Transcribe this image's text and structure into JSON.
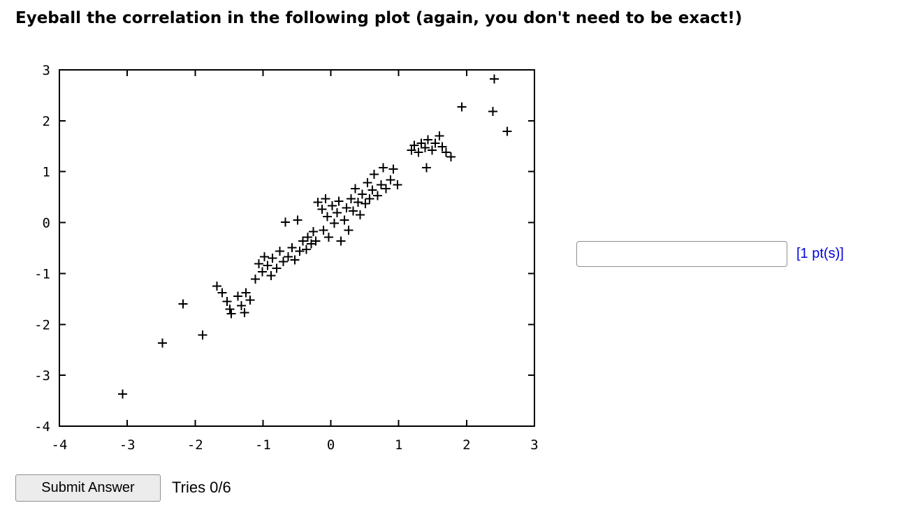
{
  "page": {
    "title": "Eyeball the correlation in the following plot (again, you don't need to be exact!)"
  },
  "answer": {
    "input_value": "",
    "points_label": "[1 pt(s)]"
  },
  "actions": {
    "submit_label": "Submit Answer",
    "tries_label": "Tries 0/6"
  },
  "colors": {
    "points_label_blue": "#0000dd",
    "marker_black": "#000000"
  },
  "chart_data": {
    "type": "scatter",
    "title": "",
    "xlabel": "",
    "ylabel": "",
    "marker": "+",
    "color": "#000000",
    "grid": false,
    "legend": "none",
    "xlim": [
      -4,
      3
    ],
    "ylim": [
      -4,
      3
    ],
    "xticks": [
      -4,
      -3,
      -2,
      -1,
      0,
      1,
      2,
      3
    ],
    "yticks": [
      -4,
      -3,
      -2,
      -1,
      0,
      1,
      2,
      3
    ],
    "points": [
      [
        -3.07,
        -3.37
      ],
      [
        -2.48,
        -2.37
      ],
      [
        -1.89,
        -2.21
      ],
      [
        -2.18,
        -1.6
      ],
      [
        -1.68,
        -1.25
      ],
      [
        -1.6,
        -1.38
      ],
      [
        -1.53,
        -1.55
      ],
      [
        -1.49,
        -1.7
      ],
      [
        -1.47,
        -1.79
      ],
      [
        -1.37,
        -1.45
      ],
      [
        -1.32,
        -1.63
      ],
      [
        -1.27,
        -1.77
      ],
      [
        -1.25,
        -1.38
      ],
      [
        -1.19,
        -1.52
      ],
      [
        -1.11,
        -1.11
      ],
      [
        -1.06,
        -0.81
      ],
      [
        -1.01,
        -0.97
      ],
      [
        -0.98,
        -0.67
      ],
      [
        -0.93,
        -0.84
      ],
      [
        -0.88,
        -1.04
      ],
      [
        -0.86,
        -0.7
      ],
      [
        -0.8,
        -0.9
      ],
      [
        -0.75,
        -0.56
      ],
      [
        -0.7,
        -0.77
      ],
      [
        -0.67,
        0.01
      ],
      [
        -0.63,
        -0.67
      ],
      [
        -0.57,
        -0.49
      ],
      [
        -0.53,
        -0.73
      ],
      [
        -0.49,
        0.05
      ],
      [
        -0.46,
        -0.56
      ],
      [
        -0.41,
        -0.36
      ],
      [
        -0.36,
        -0.53
      ],
      [
        -0.34,
        -0.29
      ],
      [
        -0.29,
        -0.42
      ],
      [
        -0.26,
        -0.18
      ],
      [
        -0.22,
        -0.36
      ],
      [
        -0.19,
        0.4
      ],
      [
        -0.13,
        0.26
      ],
      [
        -0.11,
        -0.15
      ],
      [
        -0.08,
        0.47
      ],
      [
        -0.05,
        0.12
      ],
      [
        -0.03,
        -0.29
      ],
      [
        0.02,
        0.33
      ],
      [
        0.05,
        -0.01
      ],
      [
        0.09,
        0.19
      ],
      [
        0.12,
        0.42
      ],
      [
        0.15,
        -0.36
      ],
      [
        0.2,
        0.05
      ],
      [
        0.23,
        0.29
      ],
      [
        0.26,
        -0.15
      ],
      [
        0.3,
        0.47
      ],
      [
        0.33,
        0.23
      ],
      [
        0.36,
        0.67
      ],
      [
        0.4,
        0.4
      ],
      [
        0.43,
        0.15
      ],
      [
        0.46,
        0.56
      ],
      [
        0.51,
        0.37
      ],
      [
        0.54,
        0.78
      ],
      [
        0.57,
        0.47
      ],
      [
        0.61,
        0.64
      ],
      [
        0.64,
        0.95
      ],
      [
        0.69,
        0.53
      ],
      [
        0.74,
        0.74
      ],
      [
        0.77,
        1.08
      ],
      [
        0.81,
        0.67
      ],
      [
        0.88,
        0.84
      ],
      [
        0.92,
        1.05
      ],
      [
        0.98,
        0.74
      ],
      [
        1.19,
        1.42
      ],
      [
        1.23,
        1.52
      ],
      [
        1.29,
        1.38
      ],
      [
        1.33,
        1.56
      ],
      [
        1.39,
        1.47
      ],
      [
        1.41,
        1.08
      ],
      [
        1.43,
        1.63
      ],
      [
        1.49,
        1.42
      ],
      [
        1.54,
        1.56
      ],
      [
        1.6,
        1.7
      ],
      [
        1.64,
        1.49
      ],
      [
        1.7,
        1.38
      ],
      [
        1.77,
        1.29
      ],
      [
        1.93,
        2.27
      ],
      [
        2.41,
        2.82
      ],
      [
        2.39,
        2.18
      ],
      [
        2.6,
        1.79
      ]
    ]
  }
}
